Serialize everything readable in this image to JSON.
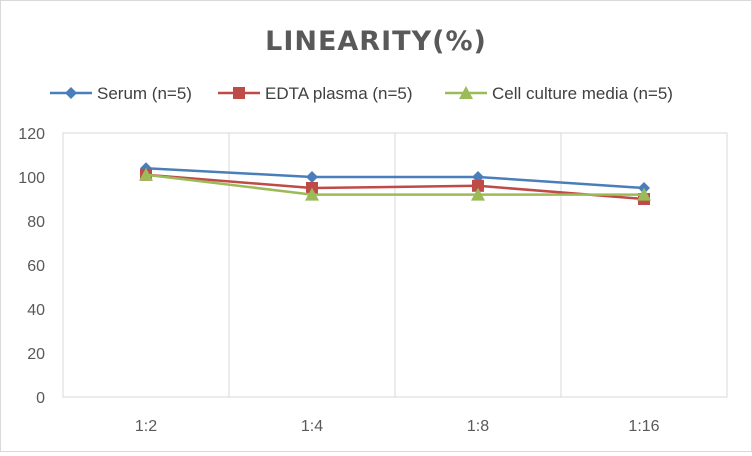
{
  "chart_data": {
    "type": "line",
    "title": "LINEARITY(%)",
    "categories": [
      "1:2",
      "1:4",
      "1:8",
      "1:16"
    ],
    "ylim": [
      0,
      120
    ],
    "yticks": [
      0,
      20,
      40,
      60,
      80,
      100,
      120
    ],
    "grid": "vertical",
    "legend_position": "top",
    "series": [
      {
        "name": "Serum (n=5)",
        "color": "#4a7ebb",
        "marker": "diamond",
        "values": [
          104,
          100,
          100,
          95
        ]
      },
      {
        "name": "EDTA plasma (n=5)",
        "color": "#be4b48",
        "marker": "square",
        "values": [
          101,
          95,
          96,
          90
        ]
      },
      {
        "name": "Cell culture media (n=5)",
        "color": "#9bbb59",
        "marker": "triangle",
        "values": [
          101,
          92,
          92,
          92
        ]
      }
    ]
  }
}
